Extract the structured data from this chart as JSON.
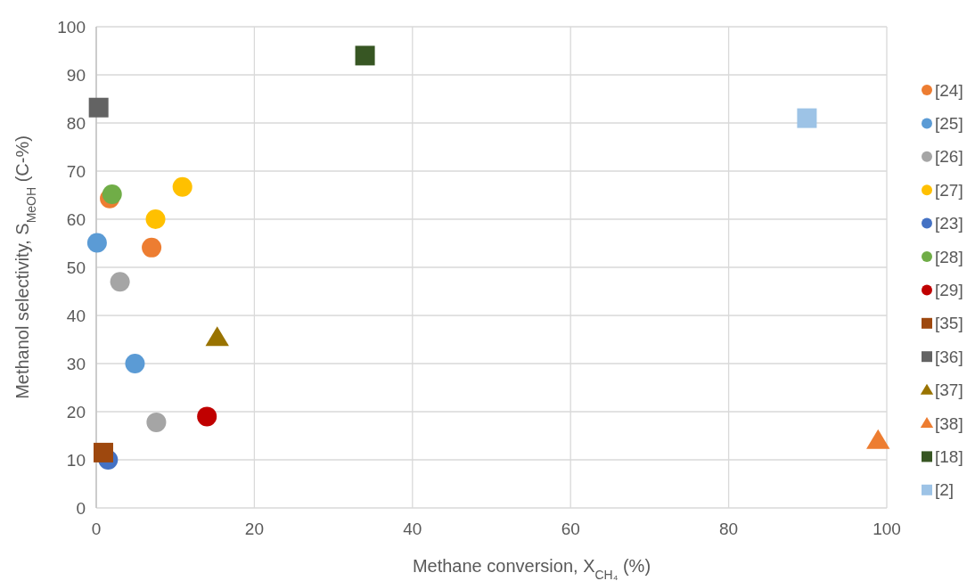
{
  "chart_data": {
    "type": "scatter",
    "xlabel": "Methane conversion, X$_{CH₄}$ (%)",
    "ylabel": "Methanol selectivity, S$_{MeOH}$ (C-%)",
    "xlim": [
      0,
      100
    ],
    "ylim": [
      0,
      100
    ],
    "xticks": [
      0,
      20,
      40,
      60,
      80,
      100
    ],
    "yticks": [
      0,
      10,
      20,
      30,
      40,
      50,
      60,
      70,
      80,
      90,
      100
    ],
    "grid": true,
    "legend": "right",
    "series": [
      {
        "name": "[24]",
        "color": "#ed7d31",
        "marker": "circle",
        "x": [
          1.7,
          7.0
        ],
        "values": [
          64.3,
          54.1
        ]
      },
      {
        "name": "[25]",
        "color": "#5b9bd5",
        "marker": "circle",
        "x": [
          0.1,
          4.9
        ],
        "values": [
          55.1,
          30
        ]
      },
      {
        "name": "[26]",
        "color": "#a5a5a5",
        "marker": "circle",
        "x": [
          3.0,
          7.6
        ],
        "values": [
          47,
          17.8
        ]
      },
      {
        "name": "[27]",
        "color": "#ffc000",
        "marker": "circle",
        "x": [
          10.9,
          7.5
        ],
        "values": [
          66.7,
          60
        ]
      },
      {
        "name": "[23]",
        "color": "#4472c4",
        "marker": "circle",
        "x": [
          1.5
        ],
        "values": [
          10
        ]
      },
      {
        "name": "[28]",
        "color": "#70ad47",
        "marker": "circle",
        "x": [
          2.0
        ],
        "values": [
          65.2
        ]
      },
      {
        "name": "[29]",
        "color": "#c00000",
        "marker": "circle",
        "x": [
          14
        ],
        "values": [
          19
        ]
      },
      {
        "name": "[35]",
        "color": "#9e480e",
        "marker": "square",
        "x": [
          0.9
        ],
        "values": [
          11.5
        ]
      },
      {
        "name": "[36]",
        "color": "#636363",
        "marker": "square",
        "x": [
          0.3
        ],
        "values": [
          83.2
        ]
      },
      {
        "name": "[37]",
        "color": "#997300",
        "marker": "triangle",
        "x": [
          15.3
        ],
        "values": [
          35.4
        ]
      },
      {
        "name": "[38]",
        "color": "#ed7d31",
        "marker": "triangle",
        "x": [
          98.9
        ],
        "values": [
          14
        ]
      },
      {
        "name": "[18]",
        "color": "#375623",
        "marker": "square",
        "x": [
          34
        ],
        "values": [
          94
        ]
      },
      {
        "name": "[2]",
        "color": "#9dc3e6",
        "marker": "square",
        "x": [
          89.9
        ],
        "values": [
          81
        ]
      }
    ]
  }
}
